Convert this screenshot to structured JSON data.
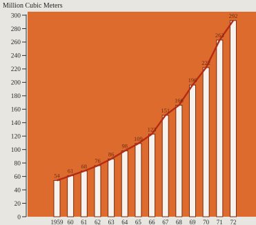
{
  "chart_data": {
    "type": "bar",
    "title": "Million Cubic Meters",
    "categories": [
      "1959",
      "60",
      "61",
      "62",
      "63",
      "64",
      "65",
      "66",
      "67",
      "68",
      "69",
      "70",
      "71",
      "72"
    ],
    "values": [
      54,
      61,
      68,
      76,
      86,
      98,
      109,
      123,
      151,
      166,
      196,
      222,
      263,
      292
    ],
    "data_labels": [
      "54",
      "61",
      "68",
      "76",
      "86",
      "98",
      "109",
      "123",
      "151",
      "166",
      "196",
      "222",
      "263",
      "292"
    ],
    "ylim": [
      0,
      300
    ],
    "yticks": [
      0,
      20,
      40,
      60,
      80,
      100,
      120,
      140,
      160,
      180,
      200,
      220,
      240,
      260,
      280,
      300
    ],
    "grid": false,
    "trend_line": true
  },
  "colors": {
    "plot_background": "#dd6b2d",
    "bar_fill": "#f7f2ec",
    "bar_stroke": "#7a2a10",
    "line": "#b42a14",
    "axis": "#2a2a2a"
  }
}
